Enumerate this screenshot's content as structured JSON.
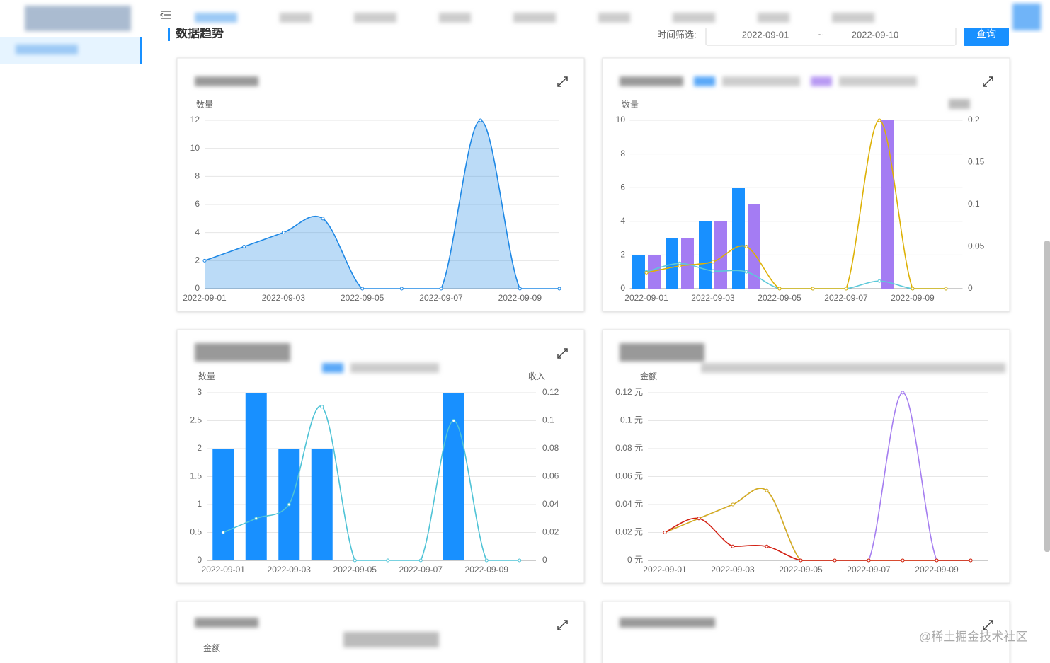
{
  "header": {
    "title": "数据趋势"
  },
  "filter": {
    "label": "时间筛选:",
    "start": "2022-09-01",
    "separator": "~",
    "end": "2022-09-10",
    "button": "查询"
  },
  "watermark": "@稀土掘金技术社区",
  "chart_data": [
    {
      "type": "line",
      "area": true,
      "smooth": true,
      "ylabel": "数量",
      "categories": [
        "2022-09-01",
        null,
        "2022-09-03",
        null,
        "2022-09-05",
        null,
        "2022-09-07",
        null,
        "2022-09-09",
        null
      ],
      "ylim": [
        0,
        12
      ],
      "yticks": [
        0,
        2,
        4,
        6,
        8,
        10,
        12
      ],
      "grid": true,
      "series": [
        {
          "color": "#1e88e5",
          "values": [
            2,
            3,
            4,
            5,
            0,
            0,
            0,
            12,
            0,
            0
          ]
        }
      ]
    },
    {
      "type": "bar",
      "smooth": true,
      "ylabel": "数量",
      "categories": [
        "2022-09-01",
        null,
        "2022-09-03",
        null,
        "2022-09-05",
        null,
        "2022-09-07",
        null,
        "2022-09-09",
        null
      ],
      "ylim": [
        0,
        10
      ],
      "yticks": [
        0,
        2,
        4,
        6,
        8,
        10
      ],
      "y2lim": [
        0,
        0.2
      ],
      "y2ticks": [
        0,
        0.05,
        0.1,
        0.15,
        0.2
      ],
      "grid": true,
      "series": [
        {
          "type": "bar",
          "color": "#1890ff",
          "values": [
            2,
            3,
            4,
            6,
            0,
            0,
            0,
            0,
            0,
            0
          ]
        },
        {
          "type": "bar",
          "color": "#a47cf3",
          "values": [
            2,
            3,
            4,
            5,
            0,
            0,
            0,
            10,
            0,
            0
          ]
        },
        {
          "type": "line",
          "axis": "y2",
          "color": "#5cc9d9",
          "values": [
            0.02,
            0.03,
            0.021,
            0.02,
            0,
            0,
            0,
            0.009,
            0,
            0
          ]
        },
        {
          "type": "line",
          "axis": "y2",
          "color": "#ddb106",
          "values": [
            0.019,
            0.027,
            0.032,
            0.05,
            0,
            0,
            0,
            0.2,
            0,
            0
          ]
        }
      ]
    },
    {
      "type": "bar",
      "smooth": true,
      "ylabel": "数量",
      "y2label": "收入",
      "categories": [
        "2022-09-01",
        null,
        "2022-09-03",
        null,
        "2022-09-05",
        null,
        "2022-09-07",
        null,
        "2022-09-09",
        null
      ],
      "ylim": [
        0,
        3
      ],
      "yticks": [
        0,
        0.5,
        1,
        1.5,
        2,
        2.5,
        3
      ],
      "y2lim": [
        0,
        0.12
      ],
      "y2ticks": [
        0,
        0.02,
        0.04,
        0.06,
        0.08,
        0.1,
        0.12
      ],
      "grid": true,
      "series": [
        {
          "type": "bar",
          "color": "#1890ff",
          "values": [
            2,
            3,
            2,
            2,
            0,
            0,
            0,
            3,
            0,
            0
          ]
        },
        {
          "type": "line",
          "axis": "y2",
          "color": "#4fc3d6",
          "values": [
            0.02,
            0.03,
            0.04,
            0.11,
            0,
            0,
            0,
            0.1,
            0,
            0
          ]
        }
      ]
    },
    {
      "type": "line",
      "smooth": true,
      "ylabel": "金额",
      "categories": [
        "2022-09-01",
        null,
        "2022-09-03",
        null,
        "2022-09-05",
        null,
        "2022-09-07",
        null,
        "2022-09-09",
        null
      ],
      "ylim": [
        0,
        0.12
      ],
      "yticks": [
        {
          "value": 0,
          "label": "0 元"
        },
        {
          "value": 0.02,
          "label": "0.02 元"
        },
        {
          "value": 0.04,
          "label": "0.04 元"
        },
        {
          "value": 0.06,
          "label": "0.06 元"
        },
        {
          "value": 0.08,
          "label": "0.08 元"
        },
        {
          "value": 0.1,
          "label": "0.1 元"
        },
        {
          "value": 0.12,
          "label": "0.12 元"
        }
      ],
      "grid": true,
      "series": [
        {
          "color": "#a57ef0",
          "values": [
            0.02,
            0.03,
            0.04,
            0.05,
            0,
            0,
            0,
            0.12,
            0,
            0
          ]
        },
        {
          "color": "#d6b01c",
          "values": [
            0.02,
            0.03,
            0.04,
            0.05,
            0,
            0,
            0,
            0,
            0,
            0
          ]
        },
        {
          "color": "#d21f12",
          "values": [
            0.02,
            0.03,
            0.01,
            0.01,
            0,
            0,
            0,
            0,
            0,
            0
          ]
        }
      ]
    },
    {
      "type": "line",
      "ylabel": "金额"
    }
  ]
}
